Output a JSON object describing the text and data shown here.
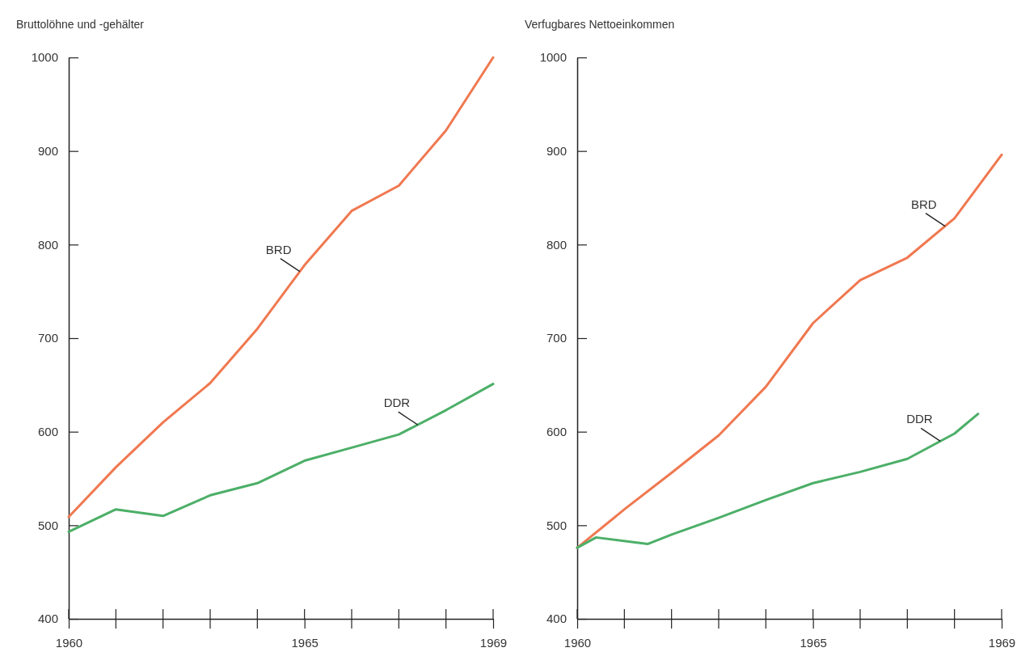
{
  "chart_data": [
    {
      "type": "line",
      "title": "Bruttolöhne und -gehälter",
      "x": [
        1960,
        1961,
        1962,
        1963,
        1964,
        1965,
        1966,
        1967,
        1968,
        1969
      ],
      "xlim": [
        1960,
        1969
      ],
      "xticks": [
        1960,
        1965,
        1969
      ],
      "ylim": [
        400,
        1000
      ],
      "yticks": [
        400,
        500,
        600,
        700,
        800,
        900,
        1000
      ],
      "grid": false,
      "legend": false,
      "marker": "none",
      "series": [
        {
          "name": "BRD",
          "color": "#f07850",
          "values": [
            509,
            562,
            610,
            652,
            710,
            778,
            836,
            863,
            922,
            1000
          ]
        },
        {
          "name": "DDR",
          "color": "#4caf68",
          "values": [
            493,
            517,
            510,
            532,
            545,
            569,
            583,
            597,
            623,
            651
          ]
        }
      ]
    },
    {
      "type": "line",
      "title": "Verfugbares Nettoeinkommen",
      "xlim": [
        1960,
        1969
      ],
      "xticks": [
        1960,
        1965,
        1969
      ],
      "ylim": [
        400,
        1000
      ],
      "yticks": [
        400,
        500,
        600,
        700,
        800,
        900,
        1000
      ],
      "grid": false,
      "legend": false,
      "marker": "none",
      "series": [
        {
          "name": "BRD",
          "color": "#f07850",
          "x": [
            1960,
            1961,
            1962,
            1963,
            1964,
            1965,
            1966,
            1967,
            1968,
            1969
          ],
          "values": [
            476,
            517,
            556,
            596,
            648,
            716,
            762,
            786,
            828,
            896
          ]
        },
        {
          "name": "DDR",
          "color": "#4caf68",
          "x": [
            1960,
            1960.4,
            1961.5,
            1962,
            1963,
            1964,
            1965,
            1966,
            1967,
            1968,
            1968.5
          ],
          "values": [
            476,
            487,
            480,
            490,
            508,
            527,
            545,
            557,
            571,
            598,
            619
          ]
        }
      ]
    }
  ]
}
